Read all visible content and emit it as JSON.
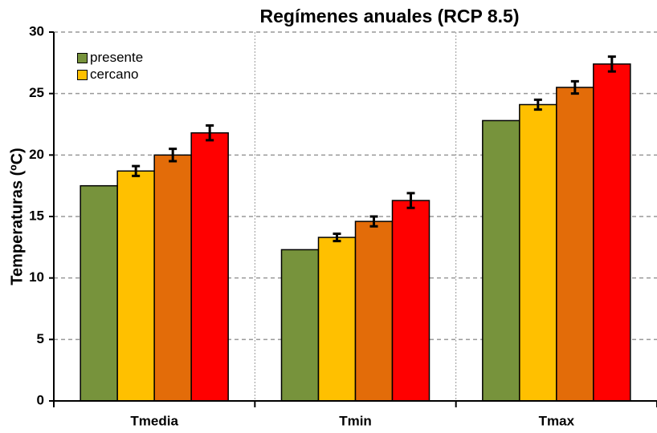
{
  "chart_data": {
    "type": "bar",
    "title": "Regímenes anuales (RCP 8.5)",
    "y_label": "Temperaturas (ºC)",
    "categories": [
      "Tmedia",
      "Tmin",
      "Tmax"
    ],
    "series": [
      {
        "name": "presente",
        "color": "#77933c",
        "values": [
          17.5,
          12.3,
          22.8
        ],
        "errors": [
          null,
          null,
          null
        ]
      },
      {
        "name": "cercano",
        "color": "#ffc000",
        "values": [
          18.7,
          13.3,
          24.1
        ],
        "errors": [
          0.4,
          0.3,
          0.4
        ]
      },
      {
        "color": "#e36c09",
        "values": [
          20.0,
          14.6,
          25.5
        ],
        "errors": [
          0.5,
          0.4,
          0.5
        ]
      },
      {
        "color": "#ff0000",
        "values": [
          21.8,
          16.3,
          27.4
        ],
        "errors": [
          0.6,
          0.6,
          0.6
        ]
      }
    ],
    "ylim": [
      0,
      30
    ],
    "yticks": [
      0,
      5,
      10,
      15,
      20,
      25,
      30
    ],
    "grid": true,
    "legend": "upper-left"
  }
}
